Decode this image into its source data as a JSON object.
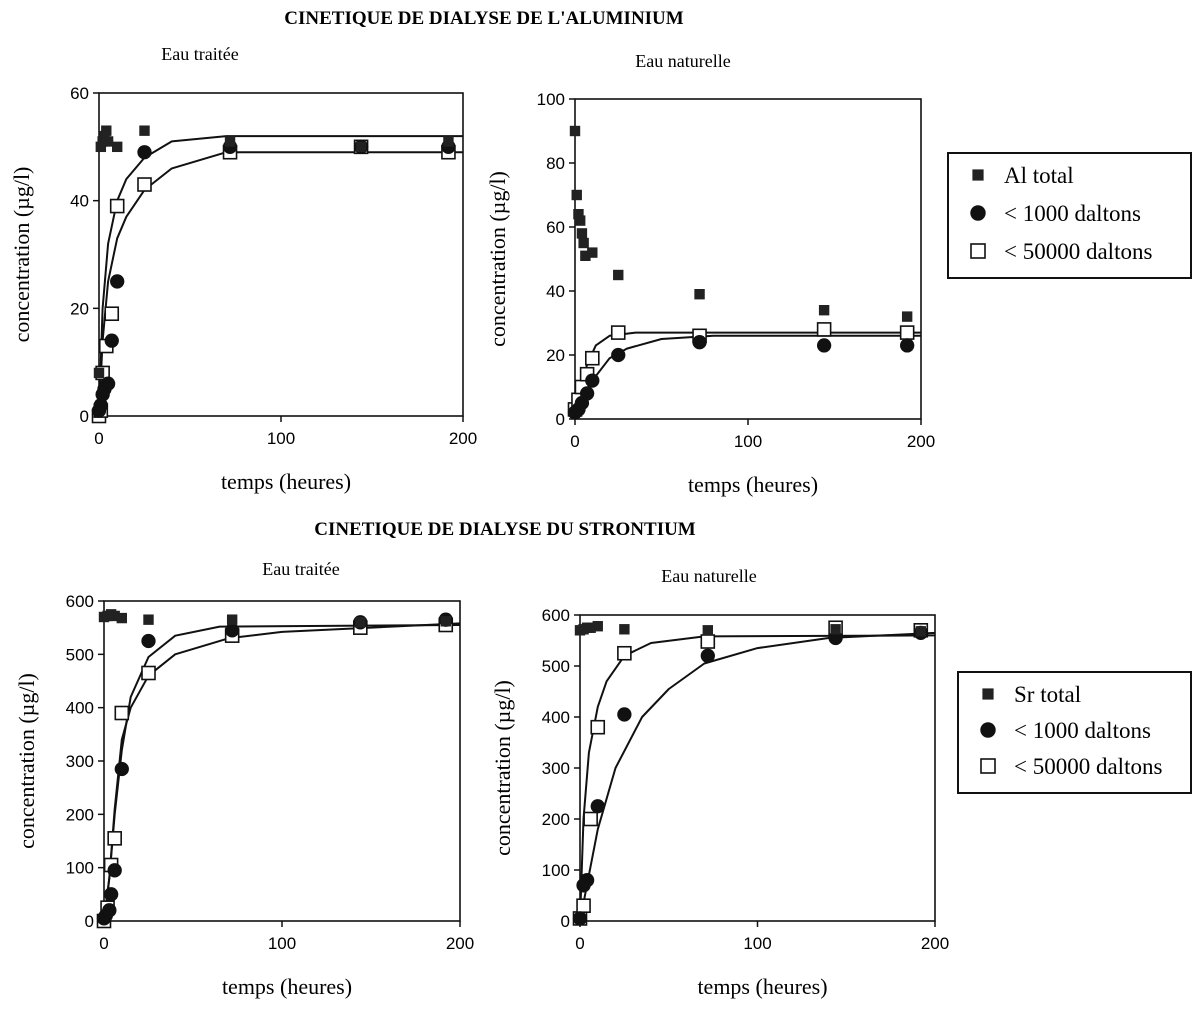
{
  "sections": [
    {
      "title": "CINETIQUE DE DIALYSE DE L'ALUMINIUM"
    },
    {
      "title": "CINETIQUE DE DIALYSE DU STRONTIUM"
    }
  ],
  "legends": [
    {
      "items": [
        {
          "marker": "filled-square",
          "label": "Al total"
        },
        {
          "marker": "filled-circle",
          "label": "< 1000 daltons"
        },
        {
          "marker": "open-square",
          "label": "< 50000 daltons"
        }
      ]
    },
    {
      "items": [
        {
          "marker": "filled-square",
          "label": "Sr total"
        },
        {
          "marker": "filled-circle",
          "label": "< 1000 daltons"
        },
        {
          "marker": "open-square",
          "label": "< 50000 daltons"
        }
      ]
    }
  ],
  "chart_data": [
    {
      "type": "scatter",
      "title": "Eau traitée",
      "xlabel": "temps (heures)",
      "ylabel": "concentration (µg/l)",
      "xlim": [
        0,
        200
      ],
      "ylim": [
        0,
        60
      ],
      "xticks": [
        0,
        100,
        200
      ],
      "yticks": [
        0,
        20,
        40,
        60
      ],
      "grid": false,
      "series": [
        {
          "name": "Al total",
          "marker": "filled-square",
          "points": [
            [
              0,
              8
            ],
            [
              1,
              50
            ],
            [
              2,
              51
            ],
            [
              3,
              52
            ],
            [
              4,
              53
            ],
            [
              5,
              51
            ],
            [
              10,
              50
            ],
            [
              25,
              53
            ],
            [
              72,
              51
            ],
            [
              144,
              50
            ],
            [
              192,
              51
            ]
          ]
        },
        {
          "name": "< 1000 daltons",
          "marker": "filled-circle",
          "points": [
            [
              0,
              1
            ],
            [
              1,
              2
            ],
            [
              2,
              4
            ],
            [
              3,
              5
            ],
            [
              5,
              6
            ],
            [
              7,
              14
            ],
            [
              10,
              25
            ],
            [
              25,
              49
            ],
            [
              72,
              50
            ],
            [
              144,
              50
            ],
            [
              192,
              50
            ]
          ]
        },
        {
          "name": "< 50000 daltons",
          "marker": "open-square",
          "points": [
            [
              0,
              0
            ],
            [
              1,
              1
            ],
            [
              2,
              8
            ],
            [
              4,
              13
            ],
            [
              7,
              19
            ],
            [
              10,
              39
            ],
            [
              25,
              43
            ],
            [
              72,
              49
            ],
            [
              144,
              50
            ],
            [
              192,
              49
            ]
          ]
        }
      ],
      "fits": [
        {
          "points": [
            [
              0,
              0
            ],
            [
              2,
              20
            ],
            [
              5,
              32
            ],
            [
              10,
              40
            ],
            [
              15,
              44
            ],
            [
              25,
              48
            ],
            [
              40,
              51
            ],
            [
              70,
              52
            ],
            [
              200,
              52
            ]
          ]
        },
        {
          "points": [
            [
              0,
              0
            ],
            [
              2,
              14
            ],
            [
              5,
              25
            ],
            [
              10,
              33
            ],
            [
              15,
              37
            ],
            [
              25,
              42
            ],
            [
              40,
              46
            ],
            [
              70,
              49
            ],
            [
              200,
              49
            ]
          ]
        }
      ]
    },
    {
      "type": "scatter",
      "title": "Eau naturelle",
      "xlabel": "temps (heures)",
      "ylabel": "concentration (µg/l)",
      "xlim": [
        0,
        200
      ],
      "ylim": [
        0,
        100
      ],
      "xticks": [
        0,
        100,
        200
      ],
      "yticks": [
        0,
        20,
        40,
        60,
        80,
        100
      ],
      "grid": false,
      "series": [
        {
          "name": "Al total",
          "marker": "filled-square",
          "points": [
            [
              0,
              90
            ],
            [
              1,
              70
            ],
            [
              2,
              64
            ],
            [
              3,
              62
            ],
            [
              4,
              58
            ],
            [
              5,
              55
            ],
            [
              6,
              51
            ],
            [
              10,
              52
            ],
            [
              25,
              45
            ],
            [
              72,
              39
            ],
            [
              144,
              34
            ],
            [
              192,
              32
            ]
          ]
        },
        {
          "name": "< 1000 daltons",
          "marker": "filled-circle",
          "points": [
            [
              0,
              2
            ],
            [
              2,
              3
            ],
            [
              4,
              5
            ],
            [
              7,
              8
            ],
            [
              10,
              12
            ],
            [
              25,
              20
            ],
            [
              72,
              24
            ],
            [
              144,
              23
            ],
            [
              192,
              23
            ]
          ]
        },
        {
          "name": "< 50000 daltons",
          "marker": "open-square",
          "points": [
            [
              0,
              3
            ],
            [
              2,
              6
            ],
            [
              4,
              10
            ],
            [
              7,
              14
            ],
            [
              10,
              19
            ],
            [
              25,
              27
            ],
            [
              72,
              26
            ],
            [
              144,
              28
            ],
            [
              192,
              27
            ]
          ]
        }
      ],
      "fits": [
        {
          "points": [
            [
              0,
              0
            ],
            [
              3,
              9
            ],
            [
              7,
              17
            ],
            [
              12,
              23
            ],
            [
              20,
              26
            ],
            [
              35,
              27
            ],
            [
              200,
              27
            ]
          ]
        },
        {
          "points": [
            [
              0,
              0
            ],
            [
              5,
              7
            ],
            [
              10,
              12
            ],
            [
              20,
              19
            ],
            [
              30,
              22
            ],
            [
              50,
              25
            ],
            [
              80,
              26
            ],
            [
              200,
              26
            ]
          ]
        }
      ]
    },
    {
      "type": "scatter",
      "title": "Eau traitée",
      "xlabel": "temps (heures)",
      "ylabel": "concentration (µg/l)",
      "xlim": [
        0,
        200
      ],
      "ylim": [
        0,
        600
      ],
      "xticks": [
        0,
        100,
        200
      ],
      "yticks": [
        0,
        100,
        200,
        300,
        400,
        500,
        600
      ],
      "grid": false,
      "series": [
        {
          "name": "Sr total",
          "marker": "filled-square",
          "points": [
            [
              0,
              570
            ],
            [
              2,
              572
            ],
            [
              4,
              575
            ],
            [
              6,
              572
            ],
            [
              10,
              568
            ],
            [
              25,
              565
            ],
            [
              72,
              565
            ],
            [
              144,
              560
            ],
            [
              192,
              562
            ]
          ]
        },
        {
          "name": "< 1000 daltons",
          "marker": "filled-circle",
          "points": [
            [
              0,
              5
            ],
            [
              1,
              10
            ],
            [
              3,
              20
            ],
            [
              4,
              50
            ],
            [
              6,
              95
            ],
            [
              10,
              285
            ],
            [
              25,
              525
            ],
            [
              72,
              545
            ],
            [
              144,
              560
            ],
            [
              192,
              565
            ]
          ]
        },
        {
          "name": "< 50000 daltons",
          "marker": "open-square",
          "points": [
            [
              0,
              0
            ],
            [
              2,
              25
            ],
            [
              4,
              105
            ],
            [
              6,
              155
            ],
            [
              10,
              390
            ],
            [
              25,
              465
            ],
            [
              72,
              535
            ],
            [
              144,
              550
            ],
            [
              192,
              555
            ]
          ]
        }
      ],
      "fits": [
        {
          "points": [
            [
              0,
              0
            ],
            [
              3,
              80
            ],
            [
              6,
              200
            ],
            [
              10,
              320
            ],
            [
              15,
              420
            ],
            [
              25,
              495
            ],
            [
              40,
              535
            ],
            [
              65,
              552
            ],
            [
              200,
              555
            ]
          ]
        },
        {
          "points": [
            [
              0,
              0
            ],
            [
              3,
              80
            ],
            [
              6,
              210
            ],
            [
              10,
              340
            ],
            [
              15,
              400
            ],
            [
              25,
              460
            ],
            [
              40,
              500
            ],
            [
              70,
              530
            ],
            [
              100,
              542
            ],
            [
              200,
              558
            ]
          ]
        }
      ]
    },
    {
      "type": "scatter",
      "title": "Eau naturelle",
      "xlabel": "temps (heures)",
      "ylabel": "concentration (µg/l)",
      "xlim": [
        0,
        200
      ],
      "ylim": [
        0,
        600
      ],
      "xticks": [
        0,
        100,
        200
      ],
      "yticks": [
        0,
        100,
        200,
        300,
        400,
        500,
        600
      ],
      "grid": false,
      "series": [
        {
          "name": "Sr total",
          "marker": "filled-square",
          "points": [
            [
              0,
              570
            ],
            [
              2,
              572
            ],
            [
              4,
              575
            ],
            [
              6,
              575
            ],
            [
              10,
              578
            ],
            [
              25,
              572
            ],
            [
              72,
              570
            ],
            [
              144,
              572
            ],
            [
              192,
              568
            ]
          ]
        },
        {
          "name": "< 1000 daltons",
          "marker": "filled-circle",
          "points": [
            [
              0,
              5
            ],
            [
              2,
              70
            ],
            [
              4,
              80
            ],
            [
              10,
              225
            ],
            [
              25,
              405
            ],
            [
              72,
              520
            ],
            [
              144,
              555
            ],
            [
              192,
              565
            ]
          ]
        },
        {
          "name": "< 50000 daltons",
          "marker": "open-square",
          "points": [
            [
              0,
              5
            ],
            [
              2,
              30
            ],
            [
              6,
              200
            ],
            [
              10,
              380
            ],
            [
              25,
              525
            ],
            [
              72,
              548
            ],
            [
              144,
              575
            ],
            [
              192,
              570
            ]
          ]
        }
      ],
      "fits": [
        {
          "points": [
            [
              0,
              0
            ],
            [
              2,
              200
            ],
            [
              5,
              330
            ],
            [
              10,
              420
            ],
            [
              15,
              470
            ],
            [
              25,
              520
            ],
            [
              40,
              545
            ],
            [
              70,
              558
            ],
            [
              200,
              560
            ]
          ]
        },
        {
          "points": [
            [
              0,
              0
            ],
            [
              5,
              90
            ],
            [
              10,
              180
            ],
            [
              20,
              300
            ],
            [
              35,
              400
            ],
            [
              50,
              455
            ],
            [
              70,
              505
            ],
            [
              100,
              535
            ],
            [
              140,
              555
            ],
            [
              200,
              565
            ]
          ]
        }
      ]
    }
  ]
}
